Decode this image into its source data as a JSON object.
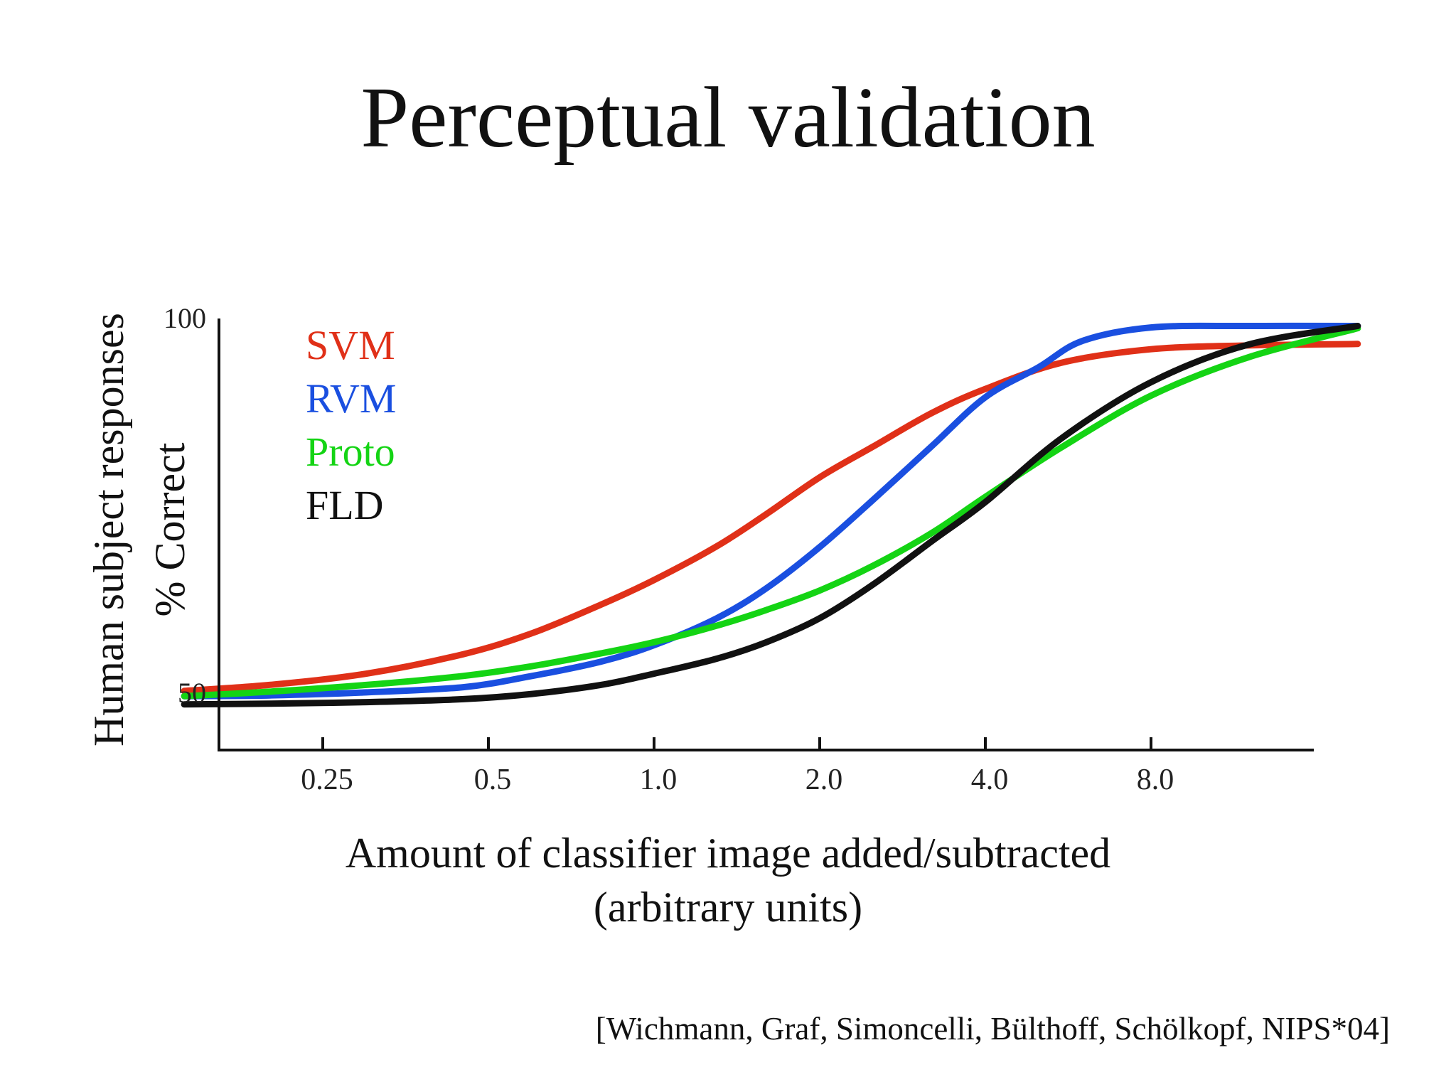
{
  "slide": {
    "title": "Perceptual validation",
    "citation": "[Wichmann, Graf, Simoncelli, Bülthoff, Schölkopf, NIPS*04]"
  },
  "chart_data": {
    "type": "line",
    "ylabel_lines": [
      "Human subject responses",
      "% Correct"
    ],
    "xlabel_lines": [
      "Amount of classifier image added/subtracted",
      "(arbitrary units)"
    ],
    "x_scale": "log2",
    "xlim": [
      0.125,
      20
    ],
    "ylim": [
      40,
      100
    ],
    "x_ticks": [
      {
        "value": 0.25,
        "label": "0.25"
      },
      {
        "value": 0.5,
        "label": "0.5"
      },
      {
        "value": 1.0,
        "label": "1.0"
      },
      {
        "value": 2.0,
        "label": "2.0"
      },
      {
        "value": 4.0,
        "label": "4.0"
      },
      {
        "value": 8.0,
        "label": "8.0"
      }
    ],
    "y_ticks": [
      {
        "value": 50,
        "label": "50"
      },
      {
        "value": 100,
        "label": "100"
      }
    ],
    "legend_position": "top-left",
    "grid": false,
    "series": [
      {
        "name": "SVM",
        "color": "#e03018",
        "x": [
          0.14,
          0.2,
          0.3,
          0.45,
          0.6,
          0.8,
          1.0,
          1.3,
          1.6,
          2.0,
          2.5,
          3.2,
          4.0,
          5.5,
          8.0,
          12.0,
          19.0
        ],
        "y": [
          50.3,
          51.1,
          52.6,
          55.2,
          58.0,
          61.8,
          65.1,
          69.6,
          73.9,
          78.8,
          82.9,
          87.4,
          90.6,
          94.1,
          95.9,
          96.4,
          96.6
        ]
      },
      {
        "name": "RVM",
        "color": "#1a4fe0",
        "x": [
          0.14,
          0.2,
          0.3,
          0.45,
          0.6,
          0.8,
          1.0,
          1.3,
          1.6,
          2.0,
          2.5,
          3.2,
          4.0,
          5.0,
          6.0,
          8.0,
          12.0,
          19.0
        ],
        "y": [
          49.6,
          49.7,
          50.1,
          50.8,
          52.3,
          54.2,
          56.4,
          60.0,
          64.0,
          69.5,
          75.8,
          83.0,
          89.5,
          93.5,
          97.0,
          98.8,
          99.0,
          99.0
        ]
      },
      {
        "name": "Proto",
        "color": "#14d414",
        "x": [
          0.14,
          0.2,
          0.3,
          0.45,
          0.6,
          0.8,
          1.0,
          1.3,
          1.6,
          2.0,
          2.5,
          3.2,
          4.0,
          5.5,
          8.0,
          12.0,
          19.0
        ],
        "y": [
          49.6,
          50.2,
          51.1,
          52.3,
          53.6,
          55.3,
          56.8,
          59.0,
          61.1,
          63.7,
          67.0,
          71.4,
          76.2,
          82.8,
          89.7,
          94.8,
          98.7
        ]
      },
      {
        "name": "FLD",
        "color": "#111111",
        "x": [
          0.14,
          0.2,
          0.3,
          0.45,
          0.6,
          0.8,
          1.0,
          1.3,
          1.6,
          2.0,
          2.5,
          3.2,
          4.0,
          5.5,
          8.0,
          12.0,
          19.0
        ],
        "y": [
          48.5,
          48.6,
          48.8,
          49.2,
          49.9,
          51.1,
          52.6,
          54.6,
          56.8,
          60.0,
          64.5,
          70.3,
          75.5,
          84.0,
          91.5,
          96.5,
          99.0
        ]
      }
    ]
  }
}
